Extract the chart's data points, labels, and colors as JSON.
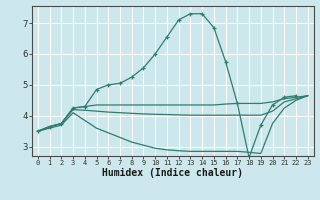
{
  "xlabel": "Humidex (Indice chaleur)",
  "bg_color": "#cce8ec",
  "grid_color": "#ffffff",
  "line_color": "#2e7d6e",
  "xlim": [
    -0.5,
    23.5
  ],
  "ylim": [
    2.7,
    7.55
  ],
  "yticks": [
    3,
    4,
    5,
    6,
    7
  ],
  "xticks": [
    0,
    1,
    2,
    3,
    4,
    5,
    6,
    7,
    8,
    9,
    10,
    11,
    12,
    13,
    14,
    15,
    16,
    17,
    18,
    19,
    20,
    21,
    22,
    23
  ],
  "line1_x": [
    0,
    1,
    2,
    3,
    4,
    5,
    6,
    7,
    8,
    9,
    10,
    11,
    12,
    13,
    14,
    15,
    16,
    17,
    18,
    19,
    20,
    21,
    22,
    23
  ],
  "line1_y": [
    3.5,
    3.65,
    3.75,
    4.25,
    4.3,
    4.85,
    5.0,
    5.05,
    5.25,
    5.55,
    6.0,
    6.55,
    7.1,
    7.3,
    7.3,
    6.85,
    5.75,
    4.4,
    2.65,
    3.7,
    4.35,
    4.6,
    4.65,
    null
  ],
  "line1_markers_x": [
    0,
    1,
    2,
    3,
    4,
    5,
    6,
    7,
    8,
    9,
    10,
    11,
    12,
    13,
    14,
    15,
    16,
    17,
    18,
    19,
    20,
    21,
    22
  ],
  "line1_markers_y": [
    3.5,
    3.65,
    3.75,
    4.25,
    4.3,
    4.85,
    5.0,
    5.05,
    5.25,
    5.55,
    6.0,
    6.55,
    7.1,
    7.3,
    7.3,
    6.85,
    5.75,
    4.4,
    2.65,
    3.7,
    4.35,
    4.6,
    4.65
  ],
  "line2_x": [
    0,
    1,
    2,
    3,
    4,
    5,
    6,
    7,
    8,
    9,
    10,
    11,
    12,
    13,
    14,
    15,
    16,
    17,
    18,
    19,
    20,
    21,
    22,
    23
  ],
  "line2_y": [
    3.5,
    3.65,
    3.75,
    4.25,
    4.3,
    4.35,
    4.35,
    4.35,
    4.35,
    4.35,
    4.35,
    4.35,
    4.35,
    4.35,
    4.35,
    4.35,
    4.38,
    4.4,
    4.4,
    4.4,
    4.45,
    4.55,
    4.6,
    4.65
  ],
  "line3_x": [
    0,
    1,
    2,
    3,
    4,
    5,
    6,
    7,
    8,
    9,
    10,
    11,
    12,
    13,
    14,
    15,
    16,
    17,
    18,
    19,
    20,
    21,
    22,
    23
  ],
  "line3_y": [
    3.5,
    3.65,
    3.75,
    4.2,
    4.18,
    4.15,
    4.12,
    4.1,
    4.08,
    4.06,
    4.05,
    4.04,
    4.03,
    4.02,
    4.02,
    4.02,
    4.02,
    4.02,
    4.02,
    4.02,
    4.15,
    4.45,
    4.55,
    4.65
  ],
  "line4_x": [
    0,
    1,
    2,
    3,
    4,
    5,
    6,
    7,
    8,
    9,
    10,
    11,
    12,
    13,
    14,
    15,
    16,
    17,
    18,
    19,
    20,
    21,
    22,
    23
  ],
  "line4_y": [
    3.5,
    3.6,
    3.7,
    4.1,
    3.85,
    3.6,
    3.45,
    3.3,
    3.15,
    3.05,
    2.95,
    2.9,
    2.87,
    2.85,
    2.85,
    2.85,
    2.85,
    2.85,
    2.82,
    2.78,
    3.75,
    4.25,
    4.5,
    4.65
  ]
}
